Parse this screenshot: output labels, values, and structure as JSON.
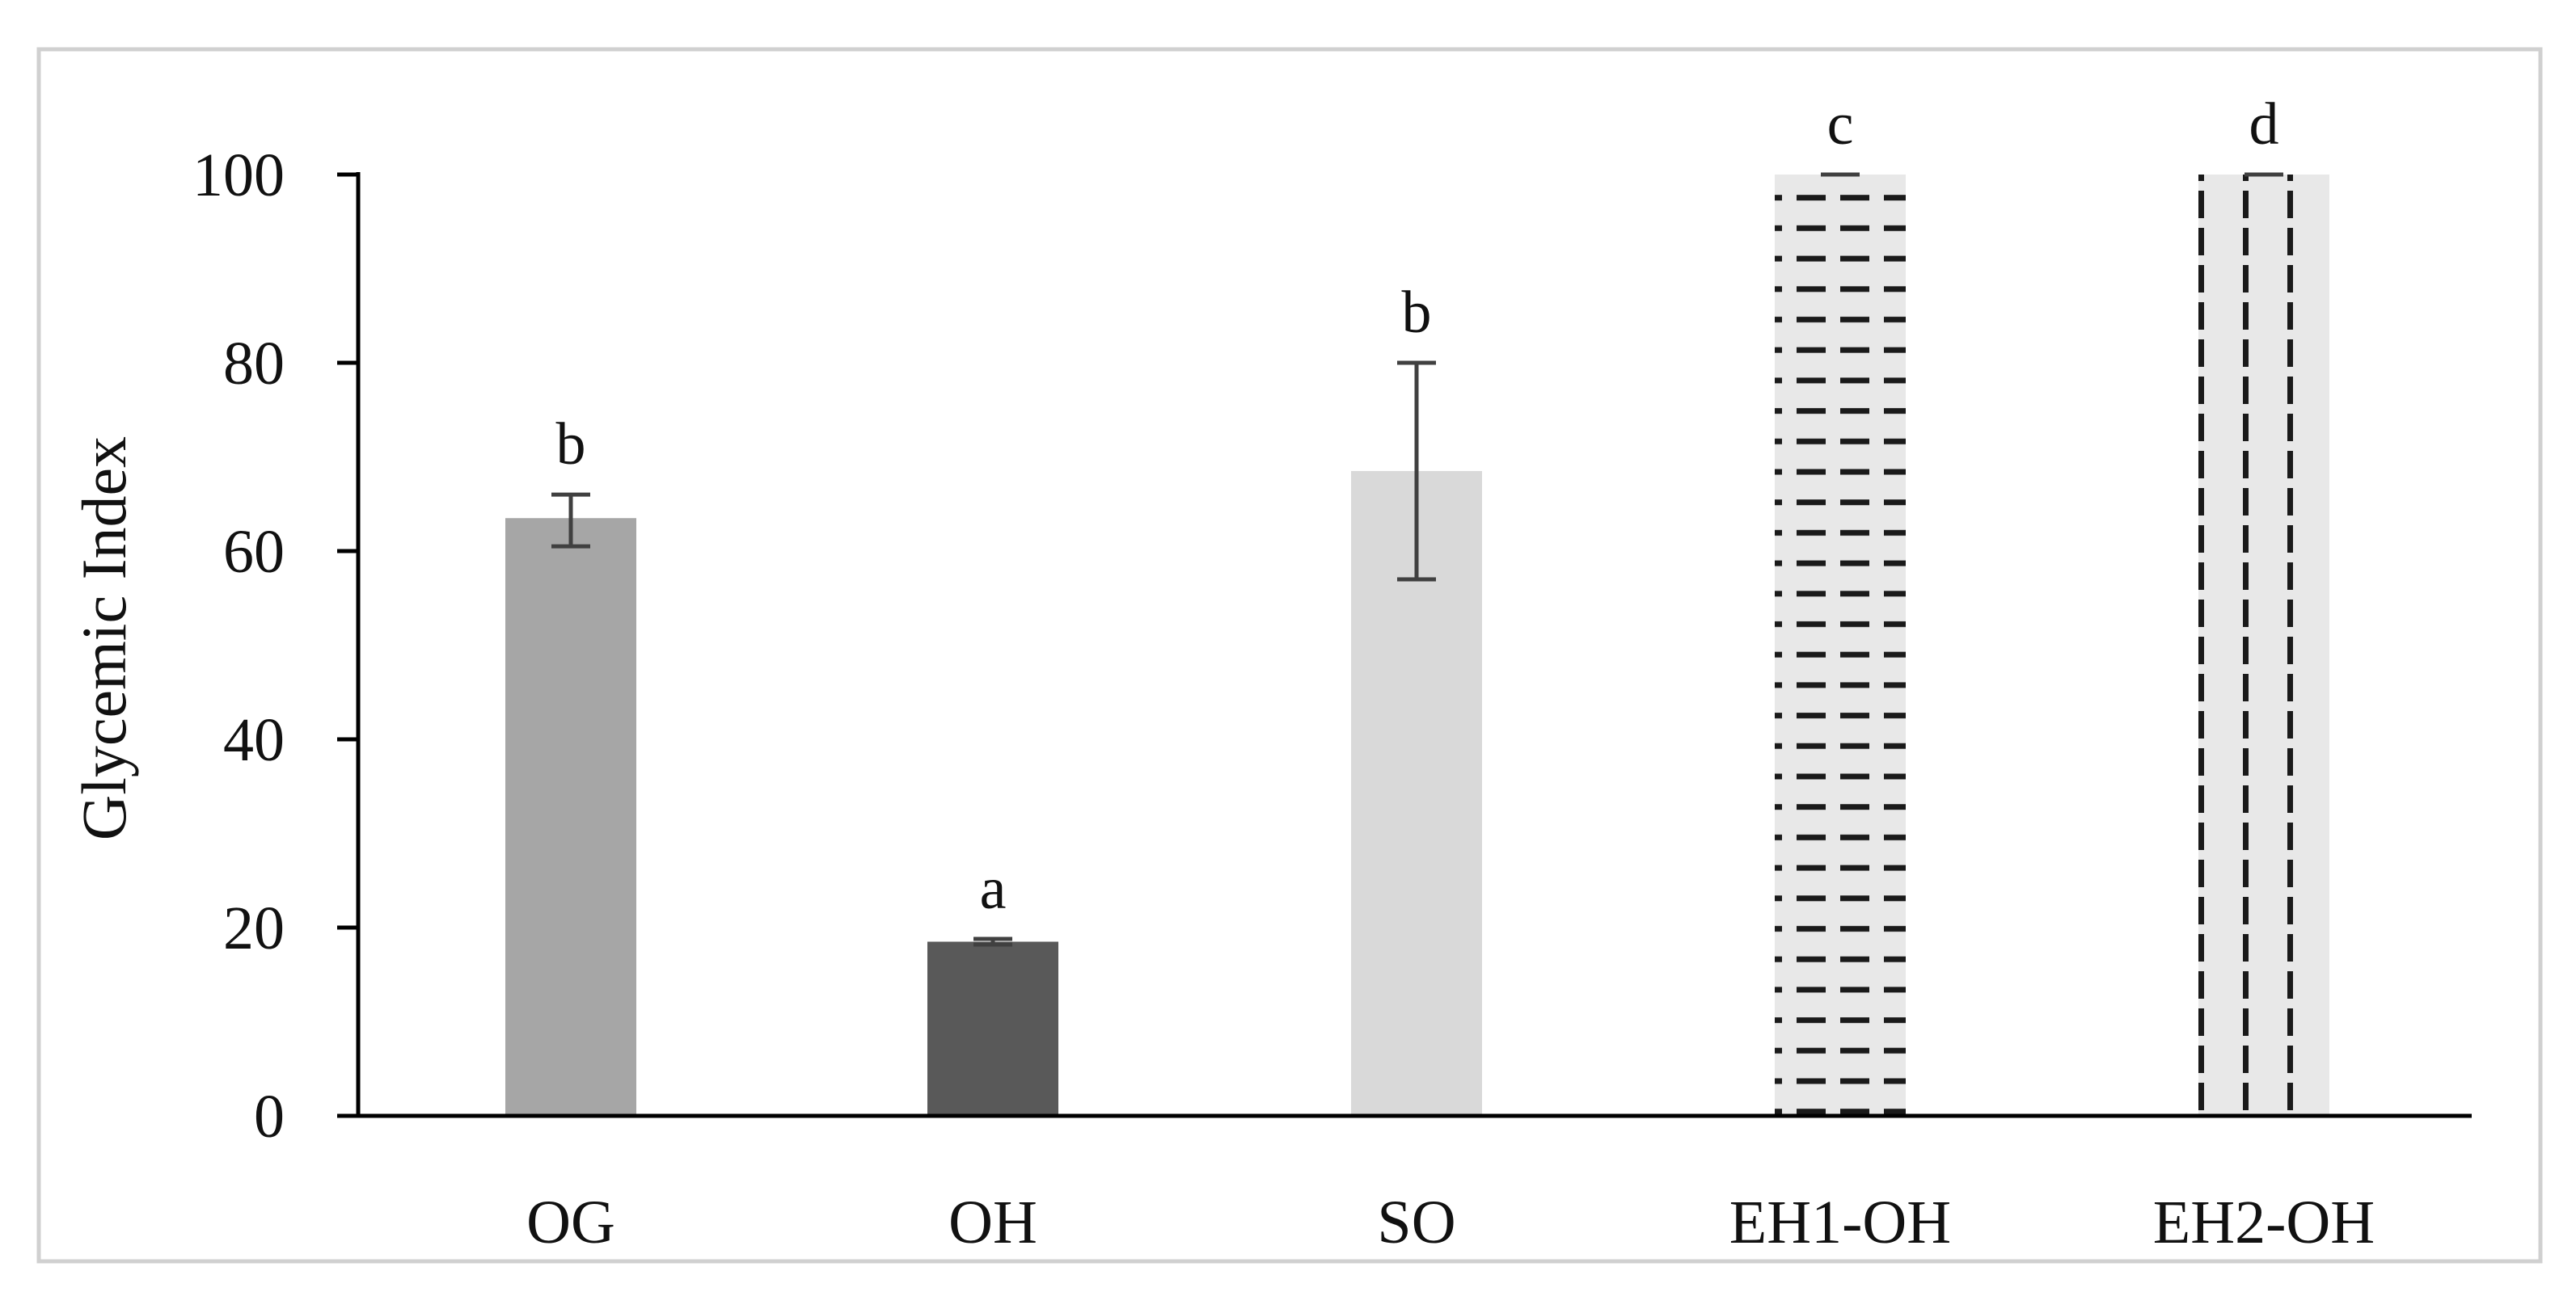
{
  "chart_data": {
    "type": "bar",
    "title": "",
    "xlabel": "",
    "ylabel": "Glycemic Index",
    "ylim": [
      0,
      100
    ],
    "yticks": [
      0,
      20,
      40,
      60,
      80,
      100
    ],
    "grid": false,
    "legend": "none",
    "categories": [
      "OG",
      "OH",
      "SO",
      "EH1-OH",
      "EH2-OH"
    ],
    "values": [
      63.5,
      18.5,
      68.5,
      100,
      100
    ],
    "error_low": [
      60.5,
      18.2,
      57,
      100,
      100
    ],
    "error_high": [
      66,
      18.8,
      80,
      100,
      100
    ],
    "significance_letters": [
      "b",
      "a",
      "b",
      "c",
      "d"
    ],
    "fills": [
      {
        "color": "#a6a6a6",
        "pattern": "solid"
      },
      {
        "color": "#595959",
        "pattern": "solid"
      },
      {
        "color": "#d9d9d9",
        "pattern": "solid"
      },
      {
        "color": "#e8e8e8",
        "pattern": "horizontal-dashes"
      },
      {
        "color": "#e8e8e8",
        "pattern": "vertical-dashes"
      }
    ],
    "frame_color": "#d0d0d0"
  }
}
